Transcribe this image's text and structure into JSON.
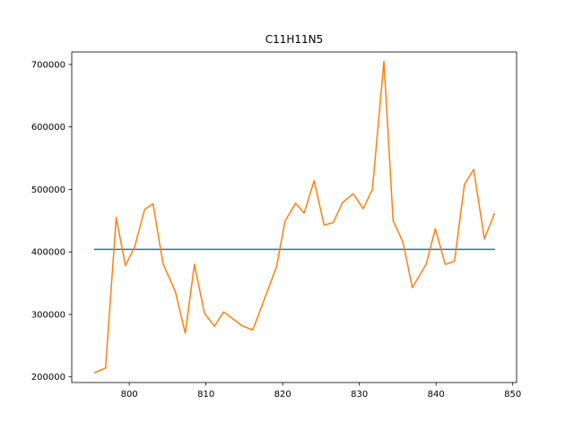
{
  "chart_data": {
    "type": "line",
    "title": "C11H11N5",
    "xlabel": "",
    "ylabel": "",
    "xlim": [
      792.5,
      850.5
    ],
    "ylim": [
      191000,
      720000
    ],
    "xticks": [
      800,
      810,
      820,
      830,
      840,
      850
    ],
    "yticks": [
      200000,
      300000,
      400000,
      500000,
      600000,
      700000
    ],
    "grid": false,
    "series": [
      {
        "color": "#1f77b4",
        "x": [
          795.5,
          847.6
        ],
        "y": [
          404000,
          404000
        ]
      },
      {
        "color": "#ff7f0e",
        "x": [
          795.5,
          796.9,
          798.3,
          799.5,
          800.7,
          802.0,
          803.1,
          804.4,
          806.0,
          807.3,
          808.5,
          809.8,
          811.1,
          812.3,
          814.7,
          816.1,
          819.2,
          820.3,
          821.7,
          822.8,
          824.1,
          825.4,
          826.6,
          827.8,
          829.2,
          830.5,
          831.7,
          833.2,
          834.4,
          835.7,
          836.9,
          838.7,
          839.9,
          841.2,
          842.4,
          843.7,
          844.9,
          846.3,
          847.6
        ],
        "y": [
          207000,
          214000,
          455000,
          378000,
          408000,
          468000,
          477000,
          381000,
          337000,
          270000,
          380000,
          302000,
          281000,
          304000,
          282000,
          275000,
          376000,
          449000,
          478000,
          462000,
          514000,
          443000,
          447000,
          479000,
          493000,
          469000,
          500000,
          705000,
          450000,
          415000,
          343000,
          380000,
          437000,
          380000,
          385000,
          508000,
          532000,
          421000,
          461000
        ]
      }
    ]
  }
}
